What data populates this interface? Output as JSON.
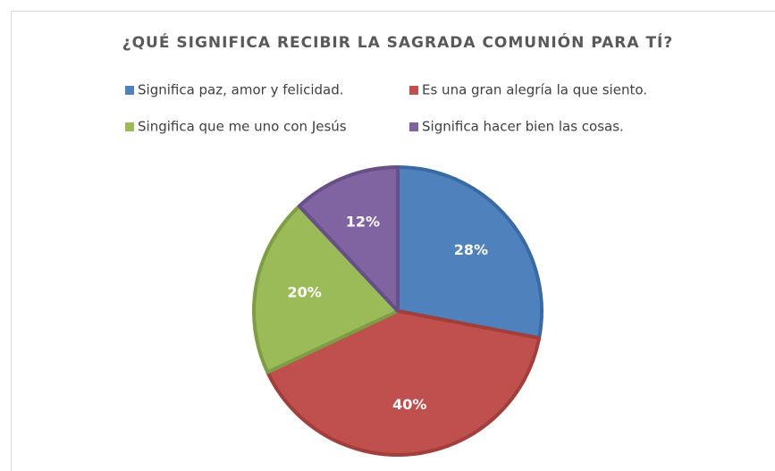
{
  "chart_data": {
    "type": "pie",
    "title": "¿QUÉ SIGNIFICA RECIBIR LA SAGRADA COMUNIÓN PARA TÍ?",
    "categories": [
      "Significa paz, amor y felicidad.",
      "Es una gran alegría la que siento.",
      "Singifica que me uno con Jesús",
      "Significa hacer bien las cosas."
    ],
    "values": [
      28,
      40,
      20,
      12
    ],
    "value_labels": [
      "28%",
      "40%",
      "20%",
      "12%"
    ],
    "colors": [
      "#4f81bd",
      "#c0504d",
      "#9bbb59",
      "#8064a2"
    ],
    "stroke_colors": [
      "#3a6aa3",
      "#a23e3b",
      "#7f9d45",
      "#674f88"
    ]
  }
}
